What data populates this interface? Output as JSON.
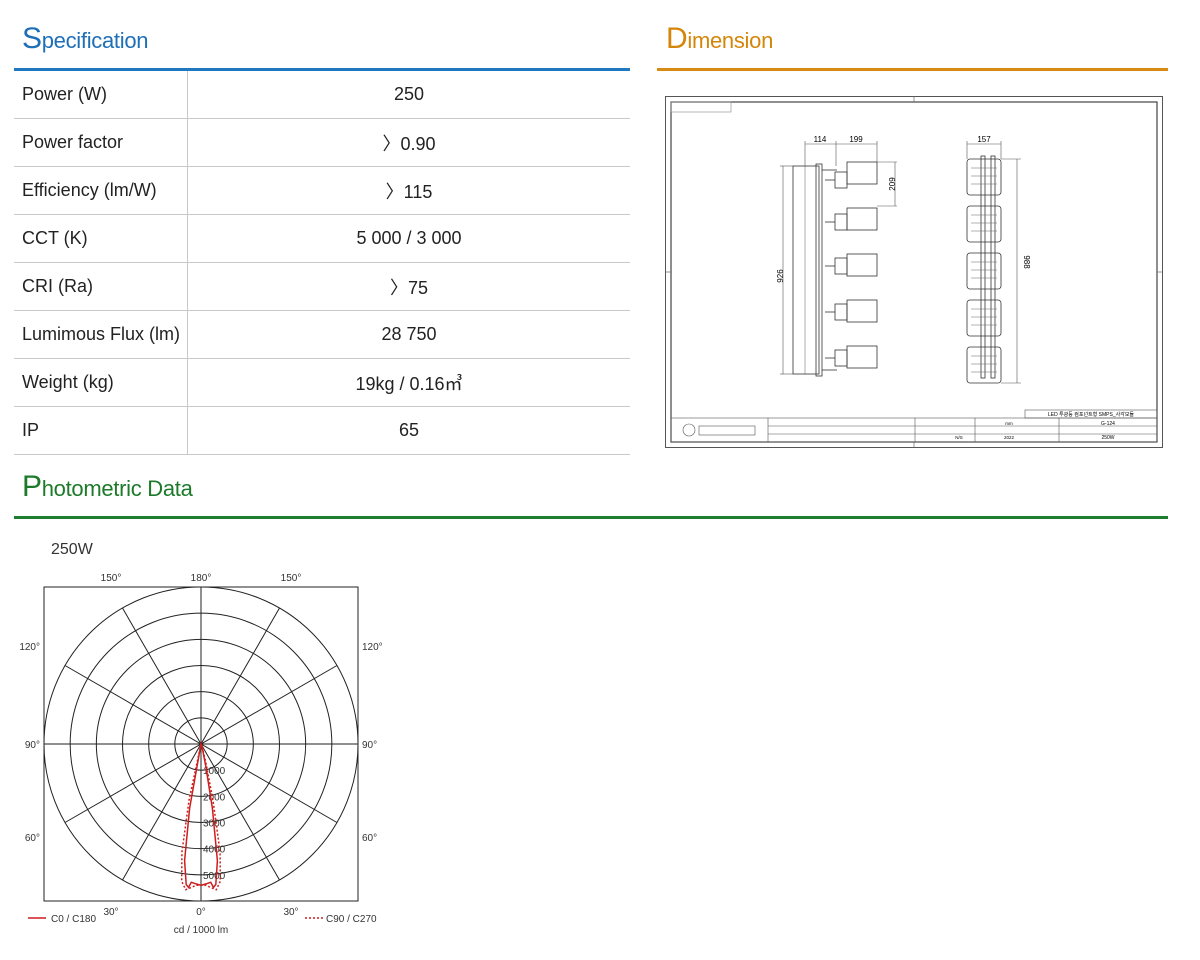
{
  "sections": {
    "specification": {
      "cap": "S",
      "rest": "pecification"
    },
    "dimension": {
      "cap": "D",
      "rest": "imension"
    },
    "photometric": {
      "cap": "P",
      "rest": "hotometric Data"
    }
  },
  "spec_rows": [
    {
      "label": "Power (W)",
      "value": "250"
    },
    {
      "label": "Power factor",
      "value": "〉0.90"
    },
    {
      "label": "Efficiency (lm/W)",
      "value": "〉115"
    },
    {
      "label": "CCT (K)",
      "value": "5 000 / 3 000"
    },
    {
      "label": "CRI (Ra)",
      "value": "〉75"
    },
    {
      "label": "Lumimous Flux (lm)",
      "value": "28 750"
    },
    {
      "label": "Weight (kg)",
      "value": "19kg / 0.16㎥"
    },
    {
      "label": "IP",
      "value": "65"
    }
  ],
  "drawing": {
    "dims": {
      "d114": "114",
      "d199": "199",
      "d209": "209",
      "d157": "157",
      "d926": "926",
      "d988": "988"
    },
    "title_block": {
      "product": "LED 투광등 컴포넌트형 SMPS_사각모듈",
      "model": "G-124",
      "power": "250W",
      "scale": "N/S",
      "year": "2022",
      "unit": "mm"
    },
    "colors": {
      "line": "#333333",
      "frame": "#444444"
    }
  },
  "chart_data": {
    "type": "polar",
    "title": "250W",
    "angle_labels": {
      "top": [
        "150°",
        "180°",
        "150°"
      ],
      "upper_side": "120°",
      "middle_side": "90°",
      "lower_side": "60°",
      "bottom": [
        "30°",
        "0°",
        "30°"
      ]
    },
    "radial_ticks": [
      1000,
      2000,
      3000,
      4000,
      5000
    ],
    "radial_max": 6000,
    "unit_label": "cd / 1000 lm",
    "series": [
      {
        "name": "C0 / C180",
        "style": "solid",
        "color": "#cc1f1f",
        "points": [
          [
            -10,
            2500
          ],
          [
            -8,
            4500
          ],
          [
            -6,
            5400
          ],
          [
            -5,
            5500
          ],
          [
            -4,
            5300
          ],
          [
            -2,
            5350
          ],
          [
            0,
            5400
          ],
          [
            2,
            5350
          ],
          [
            4,
            5300
          ],
          [
            5,
            5500
          ],
          [
            6,
            5400
          ],
          [
            8,
            4500
          ],
          [
            10,
            2500
          ],
          [
            12,
            900
          ],
          [
            15,
            300
          ],
          [
            20,
            100
          ]
        ]
      },
      {
        "name": "C90 / C270",
        "style": "dotted",
        "color": "#cc1f1f",
        "points": [
          [
            -12,
            2200
          ],
          [
            -10,
            4200
          ],
          [
            -8,
            5300
          ],
          [
            -6,
            5600
          ],
          [
            -4,
            5500
          ],
          [
            -2,
            5400
          ],
          [
            0,
            5400
          ],
          [
            2,
            5400
          ],
          [
            4,
            5500
          ],
          [
            6,
            5600
          ],
          [
            8,
            5300
          ],
          [
            10,
            4200
          ],
          [
            12,
            2200
          ],
          [
            15,
            700
          ],
          [
            20,
            150
          ]
        ]
      }
    ]
  }
}
